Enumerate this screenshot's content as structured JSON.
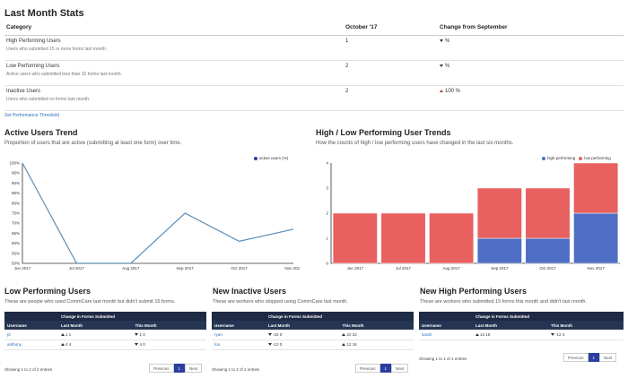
{
  "stats": {
    "title": "Last Month Stats",
    "headers": [
      "Category",
      "October '17",
      "Change from September"
    ],
    "rows": [
      {
        "category": "High Performing Users",
        "sub": "Users who submitted 15 or more forms last month.",
        "value": "1",
        "change": "%",
        "dir": "down"
      },
      {
        "category": "Low Performing Users",
        "sub": "Active users who submitted less than 15 forms last month.",
        "value": "2",
        "change": "%",
        "dir": "down"
      },
      {
        "category": "Inactive Users",
        "sub": "Users who submitted no forms last month.",
        "value": "2",
        "change": "100 %",
        "dir": "up"
      }
    ],
    "link": "Set Performance Threshold"
  },
  "active": {
    "title": "Active Users Trend",
    "desc": "Proportion of users that are active (submitting at least one form) over time.",
    "legend": "active users (%)"
  },
  "trends": {
    "title": "High / Low Performing User Trends",
    "desc": "How the counts of high / low performing users have changed in the last six months.",
    "legend_high": "high performing",
    "legend_low": "low performing"
  },
  "chart_data": [
    {
      "type": "line",
      "title": "Active Users Trend",
      "x": [
        "Jun 2017",
        "Jul 2017",
        "Aug 2017",
        "Sep 2017",
        "Oct 2017",
        "Nov 2017"
      ],
      "series": [
        {
          "name": "active users (%)",
          "values": [
            100,
            50,
            50,
            75,
            61,
            67
          ]
        }
      ],
      "ylim": [
        50,
        100
      ],
      "yticks": [
        "100%",
        "95%",
        "90%",
        "85%",
        "80%",
        "75%",
        "70%",
        "65%",
        "60%",
        "55%",
        "50%"
      ],
      "color": "#5b8db8"
    },
    {
      "type": "bar",
      "title": "High / Low Performing User Trends",
      "categories": [
        "Jun 2017",
        "Jul 2017",
        "Aug 2017",
        "Sep 2017",
        "Oct 2017",
        "Nov 2017"
      ],
      "series": [
        {
          "name": "high performing",
          "values": [
            0,
            0,
            0,
            1,
            1,
            2
          ],
          "color": "#4f6fc4"
        },
        {
          "name": "low performing",
          "values": [
            2,
            2,
            2,
            2,
            2,
            2
          ],
          "color": "#e8615f"
        }
      ],
      "ylim": [
        0,
        4
      ],
      "yticks": [
        "4",
        "3",
        "2",
        "1",
        "0"
      ]
    }
  ],
  "low": {
    "title": "Low Performing Users",
    "desc": "These are people who used CommCare last month but didn't submit 15 forms.",
    "group": "Change in Forms Submitted",
    "cols": [
      "Username",
      "Last Month",
      "This Month"
    ],
    "rows": [
      {
        "user": "pl",
        "last": "1",
        "last_dir": "up",
        "this": "0",
        "this_dir": "down",
        "this_val": "1"
      },
      {
        "user": "anthony",
        "last": "4",
        "last_dir": "up",
        "this": "0",
        "this_dir": "down",
        "this_val": "4"
      }
    ],
    "showing": "Showing 1 to 2 of 2 entries"
  },
  "inactive": {
    "title": "New Inactive Users",
    "desc": "These are workers who stopped using CommCare last month.",
    "group": "Change in Forms Submitted",
    "cols": [
      "Username",
      "Last Month",
      "This Month"
    ],
    "rows": [
      {
        "user": "ryan",
        "last": "0",
        "last_dir": "down",
        "last_val": "22",
        "this": "22",
        "this_dir": "up",
        "this_val": "22"
      },
      {
        "user": "foo",
        "last": "0",
        "last_dir": "down",
        "last_val": "12",
        "this": "16",
        "this_dir": "up",
        "this_val": "12"
      }
    ],
    "showing": "Showing 1 to 2 of 2 entries"
  },
  "high": {
    "title": "New High Performing Users",
    "desc": "These are workers who submitted 15 forms this month and didn't last month.",
    "group": "Change in Forms Submitted",
    "cols": [
      "Username",
      "Last Month",
      "This Month"
    ],
    "rows": [
      {
        "user": "sarah",
        "last": "15",
        "last_dir": "up",
        "last_val": "14",
        "this": "4",
        "this_dir": "down",
        "this_val": "12"
      }
    ],
    "showing": "Showing 1 to 1 of 1 entries"
  },
  "pager": {
    "prev": "Previous",
    "page": "1",
    "next": "Next"
  }
}
